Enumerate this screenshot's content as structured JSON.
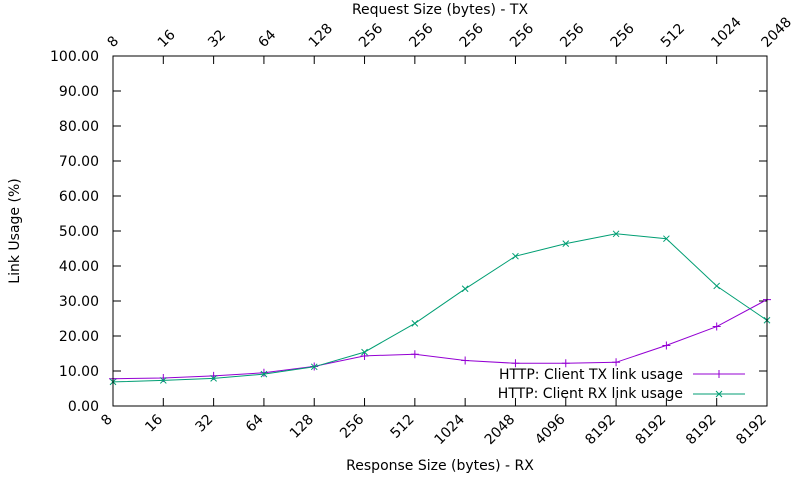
{
  "chart_data": {
    "type": "line",
    "x": [
      0,
      1,
      2,
      3,
      4,
      5,
      6,
      7,
      8,
      9,
      10,
      11,
      12,
      13
    ],
    "x_top_label": "Request Size (bytes) - TX",
    "x_bottom_label": "Response Size (bytes) - RX",
    "ylabel": "Link Usage (%)",
    "ylim": [
      0,
      100
    ],
    "yticks": [
      "0.00",
      "10.00",
      "20.00",
      "30.00",
      "40.00",
      "50.00",
      "60.00",
      "70.00",
      "80.00",
      "90.00",
      "100.00"
    ],
    "top_ticks": [
      "8",
      "16",
      "32",
      "64",
      "128",
      "256",
      "256",
      "256",
      "256",
      "256",
      "256",
      "512",
      "1024",
      "2048"
    ],
    "bottom_ticks": [
      "8",
      "16",
      "32",
      "64",
      "128",
      "256",
      "512",
      "1024",
      "2048",
      "4096",
      "8192",
      "8192",
      "8192",
      "8192"
    ],
    "grid": false,
    "legend_position": "bottom-right",
    "series": [
      {
        "name": "HTTP: Client TX link usage",
        "color": "#9400d3",
        "marker": "plus",
        "values": [
          7.8,
          8.0,
          8.6,
          9.5,
          11.3,
          14.3,
          14.8,
          13.0,
          12.2,
          12.2,
          12.5,
          17.3,
          22.7,
          30.4
        ]
      },
      {
        "name": "HTTP: Client RX link usage",
        "color": "#009e73",
        "marker": "cross",
        "values": [
          6.9,
          7.3,
          7.9,
          9.1,
          11.2,
          15.4,
          23.6,
          33.5,
          42.8,
          46.4,
          49.2,
          47.8,
          34.3,
          24.5
        ]
      }
    ]
  }
}
